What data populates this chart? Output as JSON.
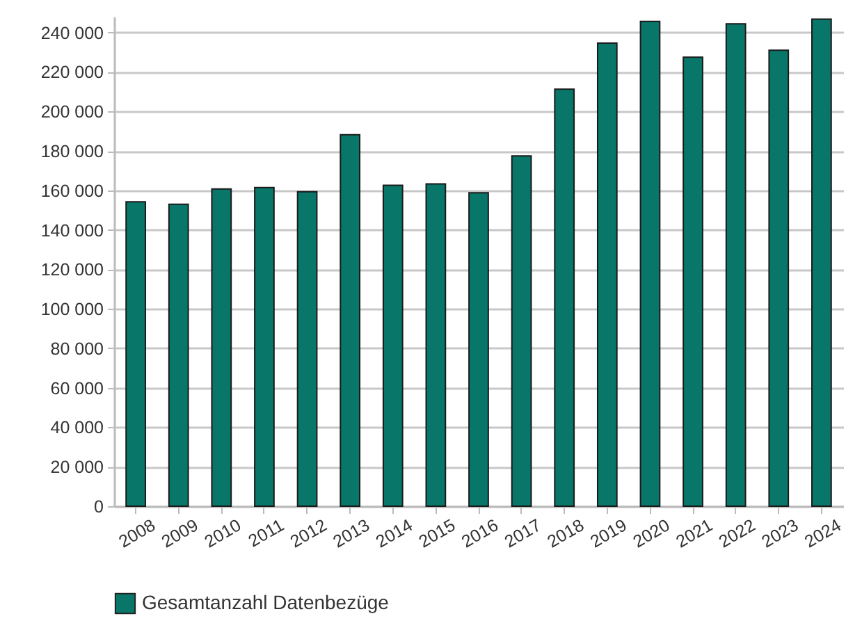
{
  "chart_data": {
    "type": "bar",
    "categories": [
      "2008",
      "2009",
      "2010",
      "2011",
      "2012",
      "2013",
      "2014",
      "2015",
      "2016",
      "2017",
      "2018",
      "2019",
      "2020",
      "2021",
      "2022",
      "2023",
      "2024"
    ],
    "series": [
      {
        "name": "Gesamtanzahl Datenbezüge",
        "color": "#08776a",
        "values": [
          154200,
          153000,
          160700,
          161400,
          159300,
          188200,
          162600,
          163300,
          158800,
          177500,
          211300,
          234600,
          245600,
          227500,
          244400,
          231000,
          246800
        ]
      }
    ],
    "ylim": [
      0,
      248000
    ],
    "yticks": [
      {
        "value": 0,
        "label": "0"
      },
      {
        "value": 20000,
        "label": "20 000"
      },
      {
        "value": 40000,
        "label": "40 000"
      },
      {
        "value": 60000,
        "label": "60 000"
      },
      {
        "value": 80000,
        "label": "80 000"
      },
      {
        "value": 100000,
        "label": "100 000"
      },
      {
        "value": 120000,
        "label": "120 000"
      },
      {
        "value": 140000,
        "label": "140 000"
      },
      {
        "value": 160000,
        "label": "160 000"
      },
      {
        "value": 180000,
        "label": "180 000"
      },
      {
        "value": 200000,
        "label": "200 000"
      },
      {
        "value": 220000,
        "label": "220 000"
      },
      {
        "value": 240000,
        "label": "240 000"
      }
    ],
    "grid": "y",
    "legend": "bottom left"
  }
}
